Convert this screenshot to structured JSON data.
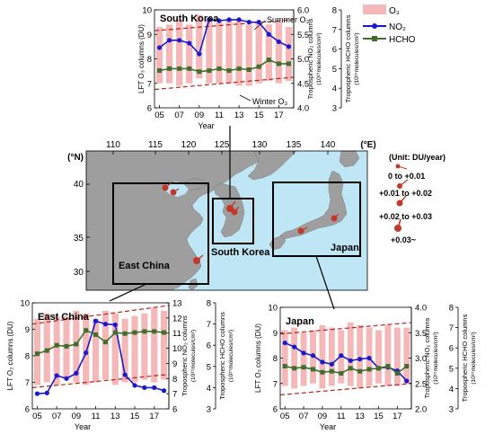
{
  "colors": {
    "o3_bar": "#f4b8b8",
    "no2": "#1a1acc",
    "hcho": "#3f6f2a",
    "trend": "#b3261e",
    "land": "#9e9e9e",
    "sea": "#bfe6f5",
    "site": "#c0392b"
  },
  "legend": {
    "o3": "O₃",
    "no2": "NO₂",
    "hcho": "HCHO"
  },
  "chart_data": [
    {
      "id": "south-korea",
      "type": "bar+line",
      "title": "South Korea",
      "xlabel": "Year",
      "ylabel": "LFT O₃ columns (DU)",
      "y2label": "Tropospheric NO₂ columns",
      "y2unit": "(10¹⁵molecules/cm²)",
      "y3label": "Tropospheric HCHO columns",
      "y3unit": "(10¹⁵molecules/cm²)",
      "xticks": [
        "05",
        "07",
        "09",
        "11",
        "13",
        "15",
        "17"
      ],
      "x": [
        2005,
        2006,
        2007,
        2008,
        2009,
        2010,
        2011,
        2012,
        2013,
        2014,
        2015,
        2016,
        2017,
        2018
      ],
      "ylim": [
        6,
        10
      ],
      "yticks": [
        6,
        7,
        8,
        9,
        10
      ],
      "y2lim": [
        4.0,
        6.0
      ],
      "y2ticks": [
        "4.0",
        "4.5",
        "5.0",
        "5.5",
        "6.0"
      ],
      "y3lim": [
        3,
        8
      ],
      "y3ticks": [
        3,
        4,
        5,
        6,
        7,
        8
      ],
      "o3_high": [
        9.3,
        9.4,
        9.6,
        9.4,
        9.8,
        9.6,
        9.5,
        9.6,
        9.6,
        9.4,
        9.5,
        9.4,
        9.5,
        9.3
      ],
      "o3_low": [
        7.0,
        7.0,
        6.9,
        7.0,
        7.2,
        7.0,
        7.0,
        7.0,
        6.9,
        6.9,
        7.0,
        7.1,
        7.0,
        7.1
      ],
      "trend_high": [
        9.15,
        9.6
      ],
      "trend_low": [
        6.75,
        7.25
      ],
      "no2": [
        5.23,
        5.38,
        5.38,
        5.32,
        5.1,
        5.8,
        5.78,
        5.8,
        5.8,
        5.75,
        5.75,
        5.5,
        5.35,
        5.25
      ],
      "hcho": [
        4.9,
        5.0,
        5.0,
        5.0,
        4.85,
        4.9,
        5.0,
        4.9,
        5.0,
        4.95,
        5.1,
        5.45,
        5.25,
        5.25
      ],
      "annotations": [
        "Summer O₃",
        "Winter O₃"
      ]
    },
    {
      "id": "east-china",
      "type": "bar+line",
      "title": "East China",
      "xlabel": "Year",
      "ylabel": "LFT O₃ columns (DU)",
      "y2label": "Tropospheric NO₂ columns",
      "y2unit": "(10¹⁵molecules/cm²)",
      "y3label": "Tropospheric HCHO columns",
      "y3unit": "(10¹⁵molecules/cm²)",
      "xticks": [
        "05",
        "07",
        "09",
        "11",
        "13",
        "15",
        "17"
      ],
      "x": [
        2005,
        2006,
        2007,
        2008,
        2009,
        2010,
        2011,
        2012,
        2013,
        2014,
        2015,
        2016,
        2017,
        2018
      ],
      "ylim": [
        6,
        10
      ],
      "yticks": [
        6,
        7,
        8,
        9,
        10
      ],
      "y2lim": [
        6,
        13
      ],
      "y2ticks": [
        "6",
        "7",
        "8",
        "9",
        "10",
        "11",
        "12",
        "13"
      ],
      "y3lim": [
        3,
        8
      ],
      "y3ticks": [
        3,
        4,
        5,
        6,
        7,
        8
      ],
      "o3_high": [
        9.4,
        9.6,
        9.5,
        9.5,
        9.7,
        9.6,
        9.4,
        9.7,
        9.6,
        9.4,
        9.5,
        9.6,
        9.8,
        9.7
      ],
      "o3_low": [
        6.9,
        7.0,
        6.9,
        7.1,
        7.0,
        6.9,
        7.0,
        7.1,
        6.9,
        7.0,
        7.0,
        7.1,
        7.0,
        7.1
      ],
      "trend_high": [
        9.2,
        9.9
      ],
      "trend_low": [
        6.8,
        7.3
      ],
      "no2": [
        7.0,
        7.05,
        8.2,
        8.0,
        8.35,
        9.7,
        11.8,
        11.6,
        11.55,
        8.25,
        7.55,
        7.4,
        7.4,
        7.2
      ],
      "hcho": [
        5.6,
        5.75,
        6.0,
        5.95,
        6.05,
        6.7,
        6.5,
        6.15,
        6.6,
        6.55,
        6.6,
        6.65,
        6.65,
        6.6
      ],
      "annotations": []
    },
    {
      "id": "japan",
      "type": "bar+line",
      "title": "Japan",
      "xlabel": "Year",
      "ylabel": "LFT O₃ columns (DU)",
      "y2label": "Tropospheric NO₂ columns",
      "y2unit": "(10¹⁵molecules/cm²)",
      "y3label": "Tropospheric HCHO columns",
      "y3unit": "(10¹⁵molecules/cm²)",
      "xticks": [
        "05",
        "07",
        "09",
        "11",
        "13",
        "15",
        "17"
      ],
      "x": [
        2005,
        2006,
        2007,
        2008,
        2009,
        2010,
        2011,
        2012,
        2013,
        2014,
        2015,
        2016,
        2017,
        2018
      ],
      "ylim": [
        6,
        10
      ],
      "yticks": [
        6,
        7,
        8,
        9,
        10
      ],
      "y2lim": [
        2.0,
        4.0
      ],
      "y2ticks": [
        "2.0",
        "2.5",
        "3.0",
        "3.5",
        "4.0"
      ],
      "y3lim": [
        3,
        8
      ],
      "y3ticks": [
        3,
        4,
        5,
        6,
        7,
        8
      ],
      "o3_high": [
        9.1,
        9.2,
        9.0,
        9.1,
        9.3,
        9.2,
        9.1,
        9.4,
        9.3,
        9.2,
        9.1,
        9.3,
        9.2,
        9.2
      ],
      "o3_low": [
        6.9,
        6.8,
        6.9,
        7.0,
        6.8,
        6.9,
        7.0,
        6.9,
        6.8,
        6.9,
        7.0,
        6.9,
        6.9,
        7.0
      ],
      "trend_high": [
        8.95,
        9.4
      ],
      "trend_low": [
        6.55,
        7.0
      ],
      "no2": [
        3.3,
        3.22,
        3.1,
        3.05,
        2.92,
        2.88,
        3.05,
        2.95,
        2.98,
        3.0,
        2.8,
        2.82,
        2.75,
        2.55
      ],
      "hcho": [
        5.1,
        5.0,
        5.05,
        4.95,
        4.8,
        4.85,
        4.75,
        5.0,
        4.85,
        4.95,
        5.0,
        5.1,
        4.75,
        5.1
      ],
      "annotations": []
    }
  ],
  "map": {
    "lon_ticks": [
      "110",
      "115",
      "120",
      "125",
      "130",
      "135",
      "140"
    ],
    "lon_unit": "(°E)",
    "lat_ticks": [
      "40",
      "35",
      "30"
    ],
    "lat_unit": "(°N)",
    "regions": [
      "East China",
      "South Korea",
      "Japan"
    ],
    "trend_legend": {
      "title": "(Unit: DU/year)",
      "items": [
        "0 to +0.01",
        "+0.01 to +0.02",
        "+0.02 to +0.03",
        "+0.03~"
      ]
    }
  }
}
